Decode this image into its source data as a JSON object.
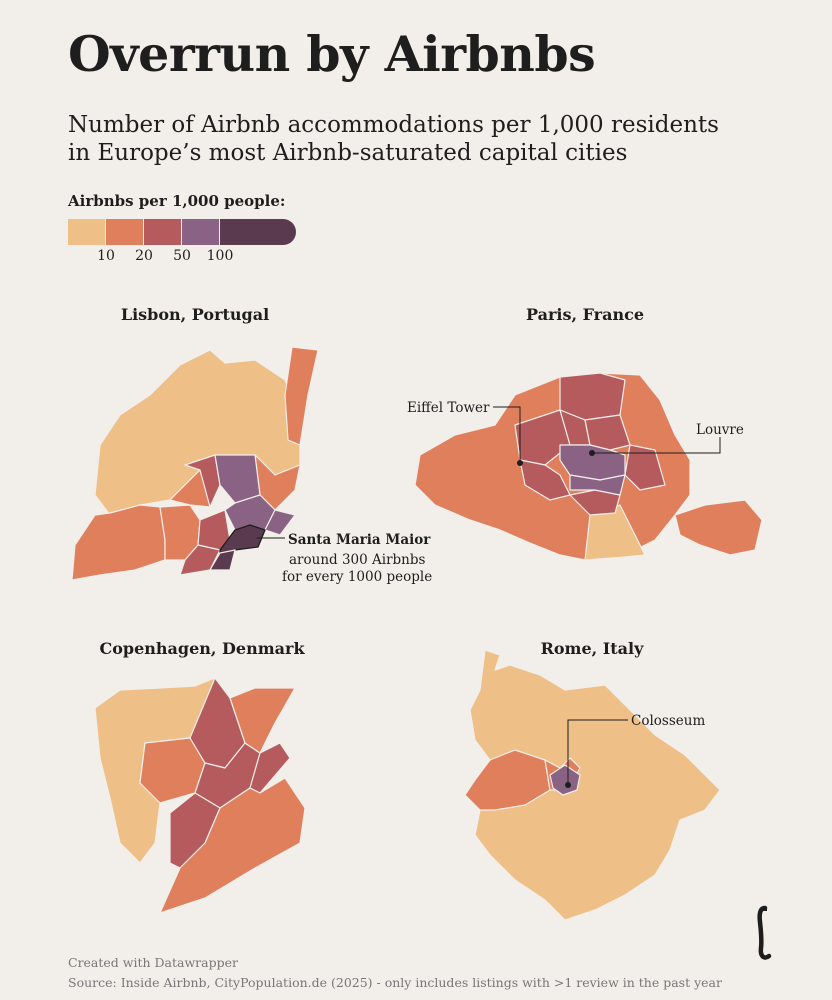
{
  "header": {
    "title": "Overrun by Airbnbs",
    "subtitle_line1": "Number of Airbnb accommodations per 1,000 residents",
    "subtitle_line2": "in Europe’s most Airbnb-saturated capital cities"
  },
  "legend": {
    "title": "Airbnbs per 1,000 people:",
    "breaks": [
      "10",
      "20",
      "50",
      "100"
    ],
    "colors": [
      "#efbf88",
      "#e07f5c",
      "#b65b5d",
      "#8a6284",
      "#5a3a4f"
    ]
  },
  "maps": {
    "lisbon": {
      "title": "Lisbon, Portugal",
      "annotation_name": "Santa Maria Maior",
      "annotation_line2": "around 300 Airbnbs",
      "annotation_line3": "for every 1000 people"
    },
    "paris": {
      "title": "Paris, France",
      "annotation_eiffel": "Eiffel Tower",
      "annotation_louvre": "Louvre"
    },
    "copenhagen": {
      "title": "Copenhagen, Denmark"
    },
    "rome": {
      "title": "Rome, Italy",
      "annotation_colosseum": "Colosseum"
    }
  },
  "footer": {
    "credit": "Created with Datawrapper",
    "source": "Source: Inside Airbnb, CityPopulation.de (2025) - only includes listings with >1 review in the past year"
  },
  "logo": {
    "glyph": "ℓ"
  }
}
